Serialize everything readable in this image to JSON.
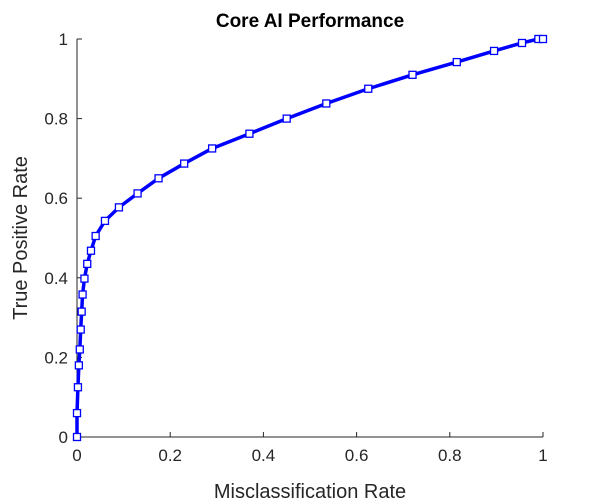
{
  "chart_data": {
    "type": "line",
    "title": "Core AI Performance",
    "xlabel": "Misclassification Rate",
    "ylabel": "True Positive Rate",
    "xlim": [
      0,
      1
    ],
    "ylim": [
      0,
      1
    ],
    "xticks": [
      "0",
      "0.2",
      "0.4",
      "0.6",
      "0.8",
      "1"
    ],
    "yticks": [
      "0",
      "0.2",
      "0.4",
      "0.6",
      "0.8",
      "1"
    ],
    "grid": false,
    "legend": "none",
    "line_color": "#0000FF",
    "marker": "square",
    "series": [
      {
        "x": [
          0,
          0,
          0.002,
          0.004,
          0.006,
          0.008,
          0.01,
          0.012,
          0.016,
          0.022,
          0.03,
          0.04,
          0.06,
          0.09,
          0.13,
          0.175,
          0.23,
          0.29,
          0.37,
          0.45,
          0.535,
          0.625,
          0.72,
          0.815,
          0.895,
          0.955,
          0.99,
          1.0
        ],
        "y": [
          0,
          0.06,
          0.125,
          0.18,
          0.22,
          0.27,
          0.315,
          0.358,
          0.398,
          0.435,
          0.468,
          0.505,
          0.543,
          0.577,
          0.612,
          0.65,
          0.687,
          0.725,
          0.762,
          0.8,
          0.838,
          0.875,
          0.91,
          0.942,
          0.97,
          0.99,
          1.0,
          1.0
        ]
      }
    ]
  }
}
